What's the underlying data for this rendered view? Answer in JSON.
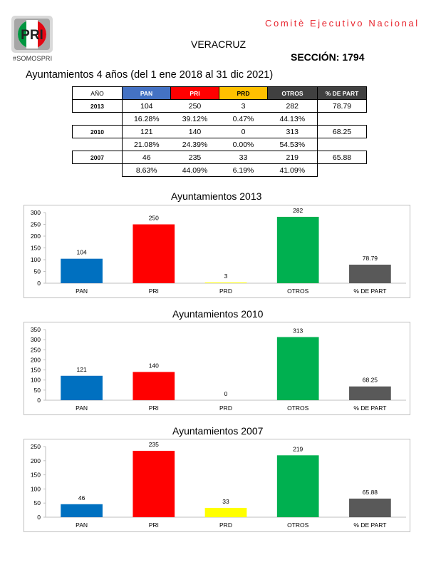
{
  "header": {
    "committee": "Comitè Ejecutivo Nacional",
    "hashtag": "#SOMOSPRI",
    "logo_text": "PRI",
    "state": "VERACRUZ",
    "section": "SECCIÓN: 1794",
    "subtitle": "Ayuntamientos 4 años (del 1 ene 2018 al 31 dic 2021)"
  },
  "colors": {
    "PAN": "#0070c0",
    "PRI": "#ff0000",
    "PRD": "#ffff00",
    "OTROS": "#00b050",
    "% DE PART": "#595959"
  },
  "table": {
    "headers": [
      "AÑO",
      "PAN",
      "PRI",
      "PRD",
      "OTROS",
      "% DE PART"
    ],
    "rows": [
      {
        "year": "2013",
        "values": [
          "104",
          "250",
          "3",
          "282",
          "78.79"
        ],
        "percents": [
          "16.28%",
          "39.12%",
          "0.47%",
          "44.13%"
        ]
      },
      {
        "year": "2010",
        "values": [
          "121",
          "140",
          "0",
          "313",
          "68.25"
        ],
        "percents": [
          "21.08%",
          "24.39%",
          "0.00%",
          "54.53%"
        ]
      },
      {
        "year": "2007",
        "values": [
          "46",
          "235",
          "33",
          "219",
          "65.88"
        ],
        "percents": [
          "8.63%",
          "44.09%",
          "6.19%",
          "41.09%"
        ]
      }
    ]
  },
  "chart_data": [
    {
      "type": "bar",
      "title": "Ayuntamientos  2013",
      "categories": [
        "PAN",
        "PRI",
        "PRD",
        "OTROS",
        "% DE PART"
      ],
      "values": [
        104,
        250,
        3,
        282,
        78.79
      ],
      "value_labels": [
        "104",
        "250",
        "3",
        "282",
        "78.79"
      ],
      "yticks": [
        "0",
        "50",
        "100",
        "150",
        "200",
        "250",
        "300"
      ],
      "ylim": [
        0,
        300
      ],
      "grid": false,
      "legend": "none"
    },
    {
      "type": "bar",
      "title": "Ayuntamientos 2010",
      "categories": [
        "PAN",
        "PRI",
        "PRD",
        "OTROS",
        "% DE PART"
      ],
      "values": [
        121,
        140,
        0,
        313,
        68.25
      ],
      "value_labels": [
        "121",
        "140",
        "0",
        "313",
        "68.25"
      ],
      "yticks": [
        "0",
        "50",
        "100",
        "150",
        "200",
        "250",
        "300",
        "350"
      ],
      "ylim": [
        0,
        350
      ],
      "grid": false,
      "legend": "none"
    },
    {
      "type": "bar",
      "title": "Ayuntamientos 2007",
      "categories": [
        "PAN",
        "PRI",
        "PRD",
        "OTROS",
        "% DE PART"
      ],
      "values": [
        46,
        235,
        33,
        219,
        65.88
      ],
      "value_labels": [
        "46",
        "235",
        "33",
        "219",
        "65.88"
      ],
      "yticks": [
        "0",
        "50",
        "100",
        "150",
        "200",
        "250"
      ],
      "ylim": [
        0,
        250
      ],
      "grid": false,
      "legend": "none"
    }
  ]
}
